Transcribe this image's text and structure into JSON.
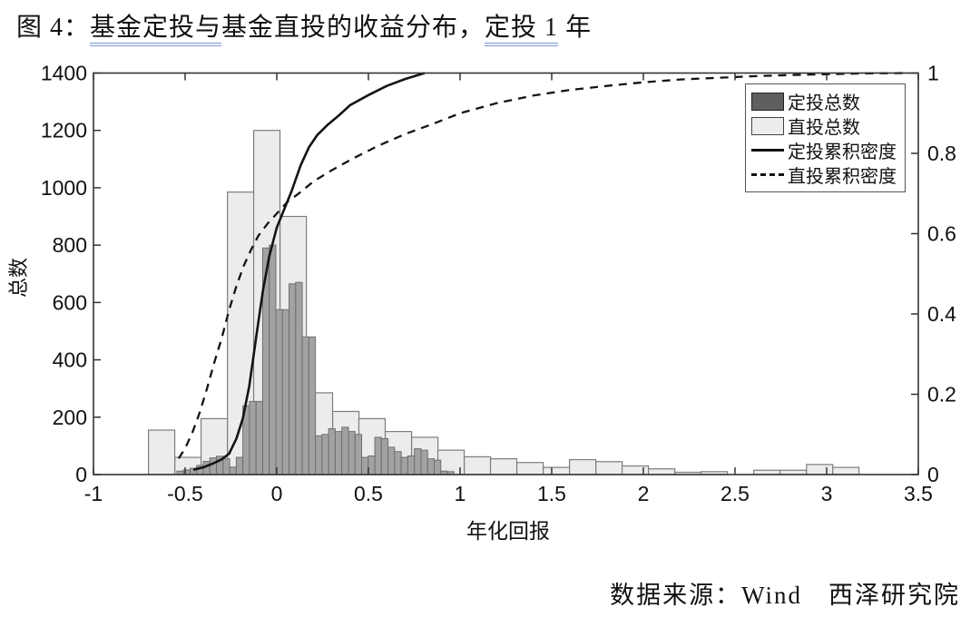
{
  "title": {
    "prefix": "图 4：",
    "underline1": "基金定投与",
    "middle": "基金直投的收益分布，",
    "underline2": "定投 1",
    "tail": " 年"
  },
  "source": {
    "label": "数据来源：Wind　西泽研究院"
  },
  "colors": {
    "direct_bar_fill": "#ececec",
    "direct_bar_edge": "#7d7d7d",
    "invest_bar_fill": "#a2a2a2",
    "invest_bar_edge": "#6f6f6f",
    "legend_dark_swatch": "#5f5f5f",
    "line_color": "#141414",
    "frame_color": "#333333",
    "underline_blue": "#7b97d4"
  },
  "chart_data": {
    "type": "bar",
    "subtype": "histogram-with-cdf-lines",
    "x_axis": {
      "label": "年化回报",
      "min": -1,
      "max": 3.5,
      "tick_values": [
        -1,
        -0.5,
        0,
        0.5,
        1,
        1.5,
        2,
        2.5,
        3,
        3.5
      ],
      "tick_labels": [
        "-1",
        "-0.5",
        "0",
        "0.5",
        "1",
        "1.5",
        "2",
        "2.5",
        "3",
        "3.5"
      ]
    },
    "y_left": {
      "label": "总数",
      "min": 0,
      "max": 1400,
      "tick_values": [
        0,
        200,
        400,
        600,
        800,
        1000,
        1200,
        1400
      ],
      "tick_labels": [
        "0",
        "200",
        "400",
        "600",
        "800",
        "1000",
        "1200",
        "1400"
      ]
    },
    "y_right": {
      "min": 0,
      "max": 1,
      "tick_values": [
        0,
        0.2,
        0.4,
        0.6,
        0.8,
        1
      ],
      "tick_labels": [
        "0",
        "0.2",
        "0.4",
        "0.6",
        "0.8",
        "1"
      ]
    },
    "grid": false,
    "legend_position": "top-right",
    "series": [
      {
        "name": "定投总数",
        "type": "bar",
        "axis": "left",
        "bin_width": 0.036,
        "bars": [
          [
            -0.545,
            12
          ],
          [
            -0.509,
            16
          ],
          [
            -0.473,
            22
          ],
          [
            -0.437,
            32
          ],
          [
            -0.401,
            46
          ],
          [
            -0.365,
            58
          ],
          [
            -0.329,
            64
          ],
          [
            -0.293,
            55
          ],
          [
            -0.257,
            26
          ],
          [
            -0.221,
            60
          ],
          [
            -0.185,
            240
          ],
          [
            -0.149,
            255
          ],
          [
            -0.113,
            255
          ],
          [
            -0.077,
            790
          ],
          [
            -0.041,
            800
          ],
          [
            -0.005,
            575
          ],
          [
            0.031,
            575
          ],
          [
            0.067,
            665
          ],
          [
            0.103,
            670
          ],
          [
            0.139,
            480
          ],
          [
            0.175,
            480
          ],
          [
            0.211,
            135
          ],
          [
            0.247,
            140
          ],
          [
            0.283,
            160
          ],
          [
            0.319,
            150
          ],
          [
            0.355,
            165
          ],
          [
            0.391,
            150
          ],
          [
            0.427,
            140
          ],
          [
            0.463,
            60
          ],
          [
            0.499,
            65
          ],
          [
            0.535,
            130
          ],
          [
            0.571,
            125
          ],
          [
            0.607,
            95
          ],
          [
            0.643,
            80
          ],
          [
            0.679,
            60
          ],
          [
            0.715,
            65
          ],
          [
            0.751,
            90
          ],
          [
            0.787,
            85
          ],
          [
            0.823,
            55
          ],
          [
            0.859,
            50
          ],
          [
            0.895,
            12
          ],
          [
            0.931,
            10
          ]
        ]
      },
      {
        "name": "直投总数",
        "type": "bar",
        "axis": "left",
        "bin_width": 0.1436,
        "bars": [
          [
            -0.7,
            155
          ],
          [
            -0.556,
            60
          ],
          [
            -0.413,
            195
          ],
          [
            -0.269,
            985
          ],
          [
            -0.126,
            1200
          ],
          [
            0.018,
            900
          ],
          [
            0.161,
            285
          ],
          [
            0.305,
            220
          ],
          [
            0.448,
            195
          ],
          [
            0.592,
            150
          ],
          [
            0.736,
            130
          ],
          [
            0.879,
            85
          ],
          [
            1.023,
            62
          ],
          [
            1.166,
            55
          ],
          [
            1.31,
            42
          ],
          [
            1.454,
            25
          ],
          [
            1.597,
            52
          ],
          [
            1.741,
            45
          ],
          [
            1.884,
            30
          ],
          [
            2.028,
            20
          ],
          [
            2.172,
            8
          ],
          [
            2.315,
            10
          ],
          [
            2.459,
            0
          ],
          [
            2.602,
            15
          ],
          [
            2.746,
            15
          ],
          [
            2.89,
            35
          ],
          [
            3.033,
            25
          ]
        ]
      },
      {
        "name": "定投累积密度",
        "type": "line",
        "style": "solid",
        "axis": "right",
        "points": [
          [
            -0.455,
            0.012
          ],
          [
            -0.4,
            0.018
          ],
          [
            -0.345,
            0.028
          ],
          [
            -0.3,
            0.038
          ],
          [
            -0.26,
            0.052
          ],
          [
            -0.22,
            0.09
          ],
          [
            -0.185,
            0.14
          ],
          [
            -0.15,
            0.22
          ],
          [
            -0.11,
            0.35
          ],
          [
            -0.075,
            0.46
          ],
          [
            -0.04,
            0.545
          ],
          [
            0.0,
            0.615
          ],
          [
            0.04,
            0.66
          ],
          [
            0.08,
            0.705
          ],
          [
            0.13,
            0.77
          ],
          [
            0.175,
            0.815
          ],
          [
            0.22,
            0.845
          ],
          [
            0.28,
            0.872
          ],
          [
            0.34,
            0.895
          ],
          [
            0.4,
            0.92
          ],
          [
            0.5,
            0.945
          ],
          [
            0.6,
            0.968
          ],
          [
            0.7,
            0.985
          ],
          [
            0.807,
            1.0
          ]
        ]
      },
      {
        "name": "直投累积密度",
        "type": "line",
        "style": "dashed",
        "axis": "right",
        "points": [
          [
            -0.535,
            0.04
          ],
          [
            -0.5,
            0.065
          ],
          [
            -0.46,
            0.105
          ],
          [
            -0.42,
            0.155
          ],
          [
            -0.38,
            0.215
          ],
          [
            -0.34,
            0.28
          ],
          [
            -0.3,
            0.34
          ],
          [
            -0.26,
            0.41
          ],
          [
            -0.22,
            0.47
          ],
          [
            -0.18,
            0.52
          ],
          [
            -0.14,
            0.56
          ],
          [
            -0.1,
            0.595
          ],
          [
            -0.05,
            0.625
          ],
          [
            0.0,
            0.65
          ],
          [
            0.06,
            0.68
          ],
          [
            0.12,
            0.7
          ],
          [
            0.2,
            0.73
          ],
          [
            0.3,
            0.758
          ],
          [
            0.42,
            0.788
          ],
          [
            0.55,
            0.818
          ],
          [
            0.7,
            0.848
          ],
          [
            0.85,
            0.873
          ],
          [
            1.0,
            0.9
          ],
          [
            1.2,
            0.925
          ],
          [
            1.4,
            0.944
          ],
          [
            1.6,
            0.958
          ],
          [
            1.8,
            0.968
          ],
          [
            2.0,
            0.977
          ],
          [
            2.2,
            0.984
          ],
          [
            2.4,
            0.988
          ],
          [
            2.6,
            0.992
          ],
          [
            2.8,
            0.995
          ],
          [
            3.0,
            0.997
          ],
          [
            3.2,
            0.999
          ],
          [
            3.45,
            1.0
          ]
        ]
      }
    ]
  }
}
